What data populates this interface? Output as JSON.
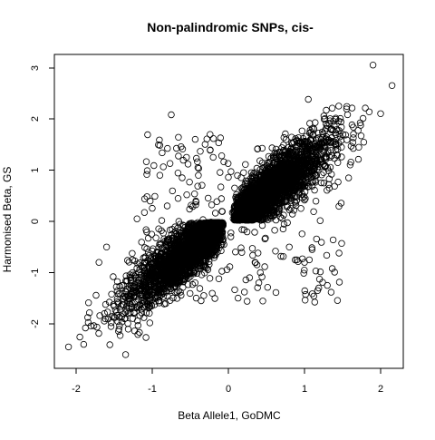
{
  "chart_data": {
    "type": "scatter",
    "title": "Non-palindromic SNPs, cis-",
    "xlabel": "Beta Allele1, GoDMC",
    "ylabel": "Harmonised Beta, GS",
    "xlim": [
      -2.25,
      2.25
    ],
    "ylim": [
      -2.75,
      3.2
    ],
    "x_ticks": [
      -2,
      -1,
      0,
      1,
      2
    ],
    "y_ticks": [
      -2,
      -1,
      0,
      1,
      2,
      3
    ],
    "x_tick_labels": [
      "-2",
      "-1",
      "0",
      "1",
      "2"
    ],
    "y_tick_labels": [
      "-2",
      "-1",
      "0",
      "1",
      "2",
      "3"
    ],
    "marker": "open-circle",
    "marker_color": "#000000",
    "grid": false,
    "legend": "none",
    "clusters": [
      {
        "description": "main positively correlated cloud, positive quadrant",
        "x_range": [
          0.05,
          1.95
        ],
        "y_range": [
          0.02,
          2.3
        ],
        "n_points": 2600
      },
      {
        "description": "main positively correlated cloud, negative quadrant",
        "x_range": [
          -2.05,
          -0.05
        ],
        "y_range": [
          -2.45,
          -0.02
        ],
        "n_points": 2600
      },
      {
        "description": "sparse off-diagonal points",
        "x_range": [
          -1.2,
          1.5
        ],
        "y_range": [
          -1.6,
          1.7
        ],
        "n_points": 260
      }
    ],
    "notable_points": [
      {
        "x": 1.9,
        "y": 3.05
      },
      {
        "x": 2.15,
        "y": 2.65
      },
      {
        "x": 2.0,
        "y": 2.1
      },
      {
        "x": -0.75,
        "y": 2.08
      },
      {
        "x": -2.1,
        "y": -2.45
      },
      {
        "x": -1.35,
        "y": -2.6
      },
      {
        "x": -1.9,
        "y": -2.4
      },
      {
        "x": 0.4,
        "y": -1.2
      },
      {
        "x": 0.9,
        "y": -0.75
      },
      {
        "x": 1.0,
        "y": -0.8
      },
      {
        "x": 1.1,
        "y": -0.55
      },
      {
        "x": 0.8,
        "y": -0.5
      },
      {
        "x": -0.4,
        "y": 1.05
      },
      {
        "x": -0.55,
        "y": 1.25
      },
      {
        "x": -0.9,
        "y": 0.9
      },
      {
        "x": -0.2,
        "y": 1.25
      },
      {
        "x": -1.6,
        "y": -0.5
      },
      {
        "x": -1.2,
        "y": 0.05
      },
      {
        "x": -0.95,
        "y": -1.35
      },
      {
        "x": 0.35,
        "y": -0.8
      },
      {
        "x": 0.2,
        "y": 0.95
      },
      {
        "x": 1.25,
        "y": 0.95
      },
      {
        "x": 1.6,
        "y": 1.1
      },
      {
        "x": 1.45,
        "y": 2.25
      },
      {
        "x": 1.05,
        "y": 2.38
      },
      {
        "x": -1.7,
        "y": -0.8
      }
    ]
  }
}
